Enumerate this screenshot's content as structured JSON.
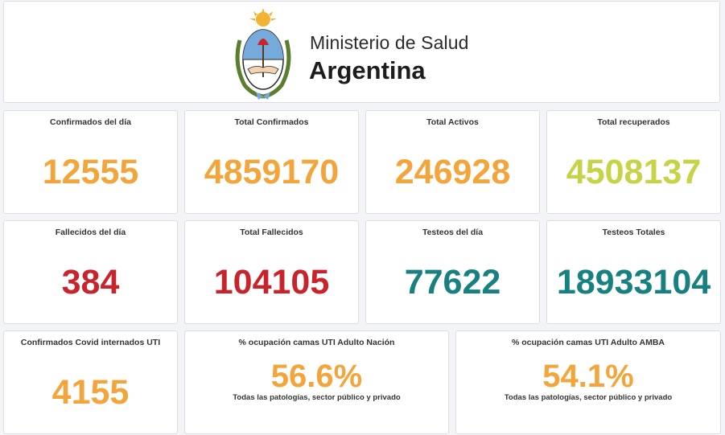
{
  "header": {
    "ministry_line1": "Ministerio de Salud",
    "ministry_line2": "Argentina"
  },
  "colors": {
    "orange": "#f3a53b",
    "green": "#c6d346",
    "red": "#c7242c",
    "teal": "#178080"
  },
  "stats": {
    "confirmados_dia": {
      "title": "Confirmados del día",
      "value": "12555"
    },
    "total_confirmados": {
      "title": "Total Confirmados",
      "value": "4859170"
    },
    "total_activos": {
      "title": "Total Activos",
      "value": "246928"
    },
    "total_recuperados": {
      "title": "Total recuperados",
      "value": "4508137"
    },
    "fallecidos_dia": {
      "title": "Fallecidos del día",
      "value": "384"
    },
    "total_fallecidos": {
      "title": "Total Fallecidos",
      "value": "104105"
    },
    "testeos_dia": {
      "title": "Testeos del día",
      "value": "77622"
    },
    "testeos_totales": {
      "title": "Testeos Totales",
      "value": "18933104"
    },
    "internados_uti": {
      "title": "Confirmados Covid internados UTI",
      "value": "4155"
    },
    "ocupacion_nacion": {
      "title": "% ocupación camas UTI Adulto Nación",
      "value": "56.6%",
      "subtitle": "Todas las patologías, sector público y privado"
    },
    "ocupacion_amba": {
      "title": "% ocupación camas UTI Adulto AMBA",
      "value": "54.1%",
      "subtitle": "Todas las patologías, sector público y privado"
    }
  }
}
